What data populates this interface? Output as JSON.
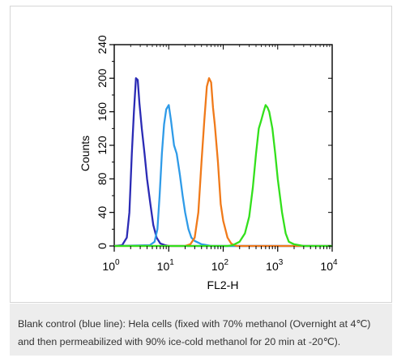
{
  "chart_data": {
    "type": "line",
    "xlabel": "FL2-H",
    "ylabel": "Counts",
    "x_scale": "log",
    "xlim": [
      1,
      10000
    ],
    "ylim": [
      0,
      240
    ],
    "grid": false,
    "x_ticks": [
      {
        "value": 1,
        "base": "10",
        "exp": "0"
      },
      {
        "value": 10,
        "base": "10",
        "exp": "1"
      },
      {
        "value": 100,
        "base": "10",
        "exp": "2"
      },
      {
        "value": 1000,
        "base": "10",
        "exp": "3"
      },
      {
        "value": 10000,
        "base": "10",
        "exp": "4"
      }
    ],
    "y_ticks": [
      "0",
      "40",
      "80",
      "120",
      "160",
      "200",
      "240"
    ],
    "series": [
      {
        "color": "#2b2bb5",
        "points": [
          [
            1,
            0
          ],
          [
            1.4,
            1
          ],
          [
            1.7,
            10
          ],
          [
            1.9,
            40
          ],
          [
            2.1,
            110
          ],
          [
            2.3,
            160
          ],
          [
            2.5,
            200
          ],
          [
            2.7,
            198
          ],
          [
            2.9,
            170
          ],
          [
            3.2,
            140
          ],
          [
            3.6,
            110
          ],
          [
            4.0,
            80
          ],
          [
            4.6,
            50
          ],
          [
            5.2,
            25
          ],
          [
            6.0,
            10
          ],
          [
            7.0,
            3
          ],
          [
            8.5,
            1
          ],
          [
            10,
            0
          ],
          [
            10000,
            0
          ]
        ]
      },
      {
        "color": "#2f9be8",
        "points": [
          [
            1,
            0
          ],
          [
            4.5,
            1
          ],
          [
            5.5,
            5
          ],
          [
            6.2,
            20
          ],
          [
            6.8,
            60
          ],
          [
            7.5,
            110
          ],
          [
            8.2,
            145
          ],
          [
            9.0,
            163
          ],
          [
            10,
            168
          ],
          [
            11,
            150
          ],
          [
            12.5,
            120
          ],
          [
            14,
            110
          ],
          [
            16,
            85
          ],
          [
            18,
            60
          ],
          [
            20,
            40
          ],
          [
            23,
            20
          ],
          [
            26,
            10
          ],
          [
            30,
            6
          ],
          [
            35,
            4
          ],
          [
            40,
            2
          ],
          [
            50,
            1
          ],
          [
            60,
            0
          ],
          [
            10000,
            0
          ]
        ]
      },
      {
        "color": "#f07a1a",
        "points": [
          [
            1,
            0
          ],
          [
            20,
            0
          ],
          [
            25,
            2
          ],
          [
            30,
            10
          ],
          [
            35,
            40
          ],
          [
            40,
            100
          ],
          [
            45,
            150
          ],
          [
            50,
            190
          ],
          [
            55,
            200
          ],
          [
            60,
            195
          ],
          [
            65,
            165
          ],
          [
            70,
            145
          ],
          [
            80,
            100
          ],
          [
            90,
            50
          ],
          [
            100,
            30
          ],
          [
            120,
            10
          ],
          [
            140,
            3
          ],
          [
            160,
            1
          ],
          [
            180,
            0
          ],
          [
            10000,
            0
          ]
        ]
      },
      {
        "color": "#33e01c",
        "points": [
          [
            1,
            0
          ],
          [
            120,
            0
          ],
          [
            150,
            1
          ],
          [
            200,
            5
          ],
          [
            250,
            15
          ],
          [
            300,
            35
          ],
          [
            350,
            70
          ],
          [
            400,
            110
          ],
          [
            450,
            140
          ],
          [
            500,
            150
          ],
          [
            550,
            160
          ],
          [
            600,
            168
          ],
          [
            650,
            165
          ],
          [
            700,
            160
          ],
          [
            800,
            140
          ],
          [
            900,
            110
          ],
          [
            1000,
            80
          ],
          [
            1200,
            40
          ],
          [
            1400,
            15
          ],
          [
            1600,
            5
          ],
          [
            2000,
            2
          ],
          [
            3000,
            0
          ],
          [
            10000,
            0
          ]
        ]
      }
    ]
  },
  "caption": "Blank control (blue line): Hela cells (fixed with 70% methanol (Overnight at 4℃) and then permeabilized with 90% ice-cold methanol for 20 min at -20℃)."
}
